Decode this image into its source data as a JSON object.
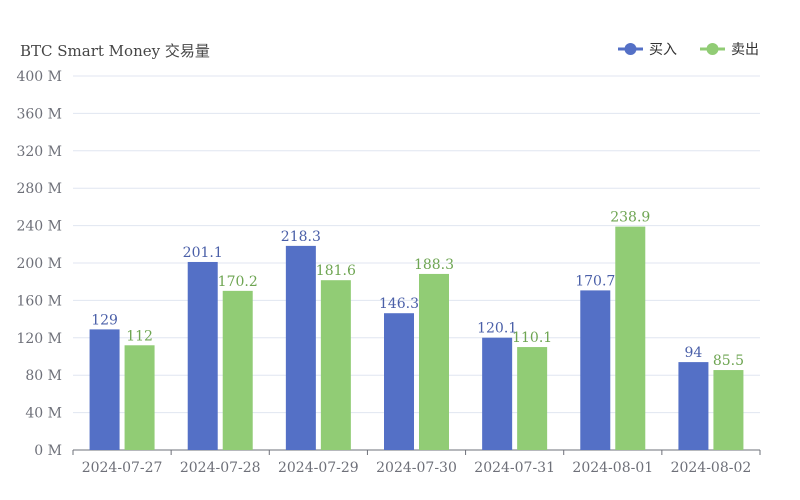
{
  "chart_data": {
    "type": "bar",
    "title": "BTC Smart Money 交易量",
    "categories": [
      "2024-07-27",
      "2024-07-28",
      "2024-07-29",
      "2024-07-30",
      "2024-07-31",
      "2024-08-01",
      "2024-08-02"
    ],
    "series": [
      {
        "name": "买入",
        "color": "#5470c6",
        "values": [
          129,
          201.1,
          218.3,
          146.3,
          120.1,
          170.7,
          94
        ]
      },
      {
        "name": "卖出",
        "color": "#91cc75",
        "values": [
          112,
          170.2,
          181.6,
          188.3,
          110.1,
          238.9,
          85.5
        ]
      }
    ],
    "ylim": [
      0,
      400
    ],
    "ytick_step": 40,
    "ytick_labels": [
      "0 M",
      "40 M",
      "80 M",
      "120 M",
      "160 M",
      "200 M",
      "240 M",
      "280 M",
      "320 M",
      "360 M",
      "400 M"
    ],
    "grid": true,
    "legend_position": "top-right"
  }
}
